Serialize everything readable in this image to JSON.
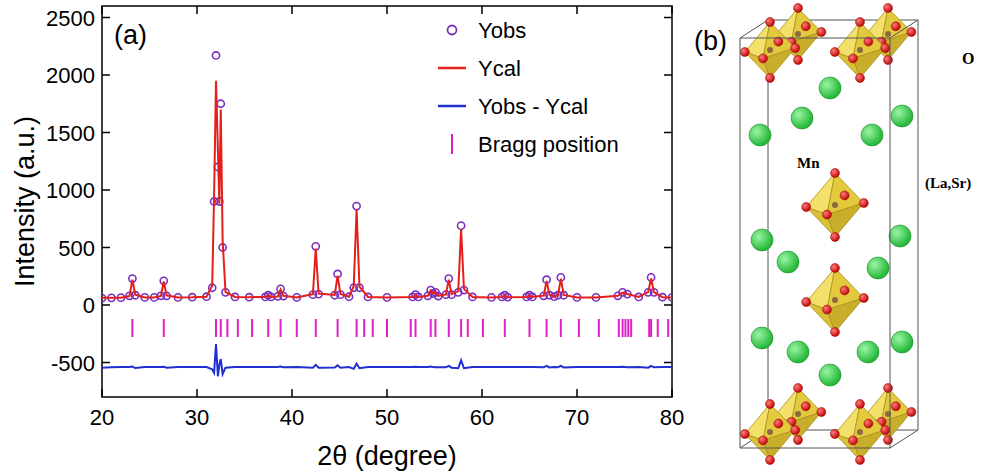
{
  "chart_data": {
    "type": "line",
    "annotations": [
      "(a)"
    ],
    "x_label": "2θ (degree)",
    "y_label": "Intensity (a.u.)",
    "xlim": [
      20,
      80
    ],
    "xticks": [
      20,
      30,
      40,
      50,
      60,
      70,
      80
    ],
    "ylim": [
      -800,
      2600
    ],
    "yticks": [
      -500,
      0,
      500,
      1000,
      1500,
      2000,
      2500
    ],
    "legend": "upper right",
    "series": [
      {
        "name": "Yobs",
        "type": "scatter",
        "marker": "circle",
        "color": "#7a2fc0",
        "x": [
          20,
          21,
          22,
          22.9,
          23.2,
          23.5,
          24.5,
          25.5,
          26.2,
          26.5,
          26.8,
          28,
          29.5,
          31,
          31.6,
          31.8,
          32.0,
          32.2,
          32.35,
          32.5,
          32.7,
          33.0,
          34,
          35.5,
          37.2,
          37.5,
          37.8,
          38.5,
          38.8,
          39.1,
          40.5,
          42.2,
          42.5,
          42.8,
          44.5,
          44.8,
          45.1,
          46.0,
          46.5,
          46.8,
          47.1,
          48,
          50,
          52.7,
          53.0,
          53.3,
          54.3,
          54.6,
          54.85,
          55.1,
          55.4,
          56.2,
          56.5,
          56.8,
          57.5,
          57.8,
          58.1,
          59,
          61,
          62.1,
          62.4,
          62.7,
          64.7,
          65.0,
          65.3,
          66.5,
          66.8,
          67.1,
          67.6,
          68.0,
          68.3,
          68.6,
          70,
          72,
          74.3,
          74.8,
          75.3,
          76.5,
          77.5,
          77.8,
          78.1,
          79,
          80
        ],
        "values": [
          60,
          62,
          64,
          80,
          230,
          85,
          66,
          66,
          80,
          210,
          80,
          66,
          68,
          72,
          150,
          900,
          2170,
          1200,
          900,
          1750,
          500,
          110,
          70,
          68,
          70,
          85,
          70,
          75,
          140,
          78,
          66,
          90,
          510,
          95,
          85,
          270,
          90,
          72,
          150,
          860,
          150,
          70,
          66,
          70,
          90,
          70,
          80,
          130,
          100,
          110,
          78,
          90,
          230,
          90,
          110,
          690,
          130,
          70,
          66,
          70,
          85,
          68,
          70,
          85,
          70,
          80,
          220,
          85,
          72,
          85,
          240,
          85,
          66,
          66,
          80,
          110,
          95,
          70,
          110,
          240,
          110,
          68,
          66
        ]
      },
      {
        "name": "Ycal",
        "type": "line",
        "line_style": "solid",
        "color": "#e3201c",
        "x": [
          20,
          21,
          22,
          22.9,
          23.2,
          23.5,
          24.5,
          25.5,
          26.2,
          26.5,
          26.8,
          28,
          29.5,
          31,
          31.6,
          31.8,
          32.0,
          32.2,
          32.35,
          32.5,
          32.7,
          33.0,
          34,
          35.5,
          37.2,
          37.5,
          37.8,
          38.5,
          38.8,
          39.1,
          40.5,
          42.2,
          42.5,
          42.8,
          44.5,
          44.8,
          45.1,
          46.0,
          46.5,
          46.8,
          47.1,
          48,
          50,
          52.7,
          53.0,
          53.3,
          54.3,
          54.6,
          54.85,
          55.1,
          55.4,
          56.2,
          56.5,
          56.8,
          57.5,
          57.8,
          58.1,
          59,
          61,
          62.1,
          62.4,
          62.7,
          64.7,
          65.0,
          65.3,
          66.5,
          66.8,
          67.1,
          67.6,
          68.0,
          68.3,
          68.6,
          70,
          72,
          74.3,
          74.8,
          75.3,
          76.5,
          77.5,
          77.8,
          78.1,
          79,
          80
        ],
        "values": [
          62,
          63,
          64,
          78,
          220,
          90,
          66,
          66,
          78,
          205,
          84,
          66,
          67,
          72,
          170,
          950,
          1950,
          1350,
          880,
          1700,
          560,
          115,
          70,
          68,
          70,
          84,
          70,
          74,
          135,
          80,
          66,
          95,
          490,
          100,
          88,
          255,
          95,
          72,
          165,
          830,
          160,
          70,
          66,
          70,
          88,
          70,
          80,
          125,
          100,
          112,
          80,
          92,
          220,
          95,
          120,
          660,
          140,
          70,
          66,
          70,
          84,
          68,
          70,
          84,
          70,
          82,
          210,
          88,
          72,
          86,
          230,
          88,
          66,
          66,
          80,
          108,
          96,
          70,
          115,
          230,
          112,
          68,
          66
        ]
      },
      {
        "name": "Yobs - Ycal",
        "type": "line",
        "line_style": "solid",
        "color": "#1f2fd0",
        "x": [
          20,
          21,
          22,
          22.9,
          23.2,
          23.5,
          24.5,
          25.5,
          26.2,
          26.5,
          26.8,
          28,
          29.5,
          31,
          31.6,
          31.8,
          32.0,
          32.2,
          32.35,
          32.5,
          32.7,
          33.0,
          34,
          35.5,
          37.2,
          37.5,
          37.8,
          38.5,
          38.8,
          39.1,
          40.5,
          42.2,
          42.5,
          42.8,
          44.5,
          44.8,
          45.1,
          46.0,
          46.5,
          46.8,
          47.1,
          48,
          50,
          52.7,
          53.0,
          53.3,
          54.3,
          54.6,
          54.85,
          55.1,
          55.4,
          56.2,
          56.5,
          56.8,
          57.5,
          57.8,
          58.1,
          59,
          61,
          62.1,
          62.4,
          62.7,
          64.7,
          65.0,
          65.3,
          66.5,
          66.8,
          67.1,
          67.6,
          68.0,
          68.3,
          68.6,
          70,
          72,
          74.3,
          74.8,
          75.3,
          76.5,
          77.5,
          77.8,
          78.1,
          79,
          80
        ],
        "values": [
          -545,
          -542,
          -540,
          -540,
          -535,
          -548,
          -540,
          -540,
          -540,
          -538,
          -545,
          -540,
          -540,
          -540,
          -560,
          -590,
          -340,
          -620,
          -520,
          -470,
          -600,
          -545,
          -540,
          -540,
          -540,
          -540,
          -540,
          -540,
          -535,
          -542,
          -540,
          -545,
          -520,
          -545,
          -543,
          -525,
          -545,
          -540,
          -555,
          -510,
          -550,
          -540,
          -540,
          -540,
          -538,
          -540,
          -540,
          -535,
          -540,
          -542,
          -542,
          -542,
          -530,
          -545,
          -550,
          -480,
          -550,
          -540,
          -540,
          -540,
          -539,
          -540,
          -540,
          -539,
          -540,
          -542,
          -530,
          -543,
          -540,
          -541,
          -530,
          -543,
          -540,
          -540,
          -540,
          -538,
          -541,
          -540,
          -545,
          -530,
          -542,
          -540,
          -540
        ]
      },
      {
        "name": "Bragg position",
        "type": "scatter",
        "marker": "vline",
        "color": "#e020c8",
        "x": [
          23.2,
          26.5,
          32.0,
          32.5,
          33.2,
          34.3,
          35.8,
          37.5,
          38.8,
          40.5,
          42.5,
          44.8,
          46.8,
          47.6,
          48.5,
          50.0,
          52.5,
          53.0,
          54.6,
          55.1,
          56.5,
          57.8,
          58.5,
          60.1,
          62.4,
          65.0,
          66.8,
          68.3,
          70.2,
          72.3,
          74.4,
          74.8,
          75.1,
          75.4,
          75.7,
          77.6,
          77.8,
          78.5,
          79.6
        ],
        "values": [
          -200,
          -200,
          -200,
          -200,
          -200,
          -200,
          -200,
          -200,
          -200,
          -200,
          -200,
          -200,
          -200,
          -200,
          -200,
          -200,
          -200,
          -200,
          -200,
          -200,
          -200,
          -200,
          -200,
          -200,
          -200,
          -200,
          -200,
          -200,
          -200,
          -200,
          -200,
          -200,
          -200,
          -200,
          -200,
          -200,
          -200,
          -200,
          -200
        ]
      }
    ]
  },
  "diagram": {
    "panel": "(b)",
    "labels": [
      "O",
      "(La,Sr)",
      "Mn"
    ]
  }
}
